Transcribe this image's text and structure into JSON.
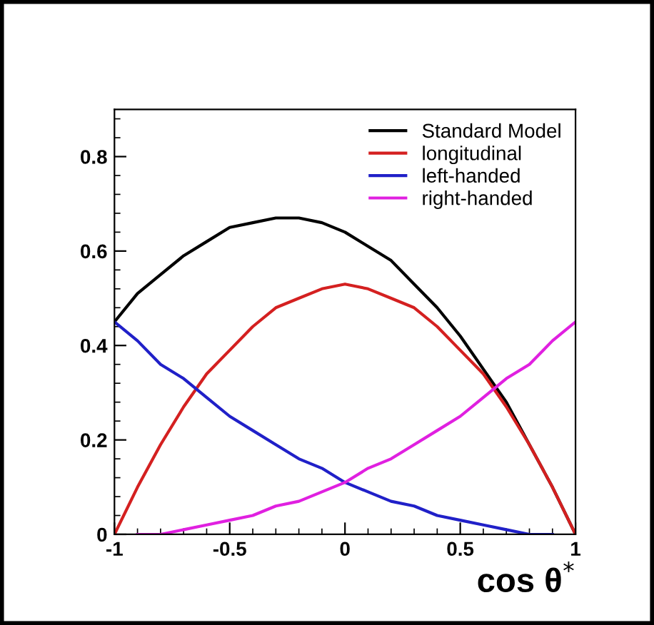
{
  "chart_data": {
    "type": "line",
    "xlabel": "cos θ$^{*}$",
    "x": [
      -1,
      -0.9,
      -0.8,
      -0.7,
      -0.6,
      -0.5,
      -0.4,
      -0.3,
      -0.2,
      -0.1,
      0,
      0.1,
      0.2,
      0.3,
      0.4,
      0.5,
      0.6,
      0.7,
      0.8,
      0.9,
      1
    ],
    "series": [
      {
        "name": "Standard Model",
        "color": "#000000",
        "values": [
          0.45,
          0.51,
          0.55,
          0.59,
          0.62,
          0.65,
          0.66,
          0.67,
          0.67,
          0.66,
          0.64,
          0.61,
          0.58,
          0.53,
          0.48,
          0.42,
          0.35,
          0.28,
          0.19,
          0.1,
          0
        ]
      },
      {
        "name": "longitudinal",
        "color": "#d42020",
        "values": [
          0,
          0.1,
          0.19,
          0.27,
          0.34,
          0.39,
          0.44,
          0.48,
          0.5,
          0.52,
          0.53,
          0.52,
          0.5,
          0.48,
          0.44,
          0.39,
          0.34,
          0.27,
          0.19,
          0.1,
          0
        ]
      },
      {
        "name": "left-handed",
        "color": "#2020c8",
        "values": [
          0.45,
          0.41,
          0.36,
          0.33,
          0.29,
          0.25,
          0.22,
          0.19,
          0.16,
          0.14,
          0.11,
          0.09,
          0.07,
          0.06,
          0.04,
          0.03,
          0.02,
          0.01,
          0.0,
          0.0,
          null
        ]
      },
      {
        "name": "right-handed",
        "color": "#e020e0",
        "values": [
          null,
          0.0,
          0.0,
          0.01,
          0.02,
          0.03,
          0.04,
          0.06,
          0.07,
          0.09,
          0.11,
          0.14,
          0.16,
          0.19,
          0.22,
          0.25,
          0.29,
          0.33,
          0.36,
          0.41,
          0.45
        ]
      }
    ],
    "xlim": [
      -1,
      1
    ],
    "ylim": [
      0,
      0.9
    ],
    "xticks": [
      {
        "value": -1,
        "label": "-1"
      },
      {
        "value": -0.5,
        "label": "-0.5"
      },
      0,
      0.5,
      1
    ],
    "yticks": [
      0,
      0.2,
      0.4,
      0.6,
      0.8
    ],
    "legend": "top right",
    "grid": false
  }
}
